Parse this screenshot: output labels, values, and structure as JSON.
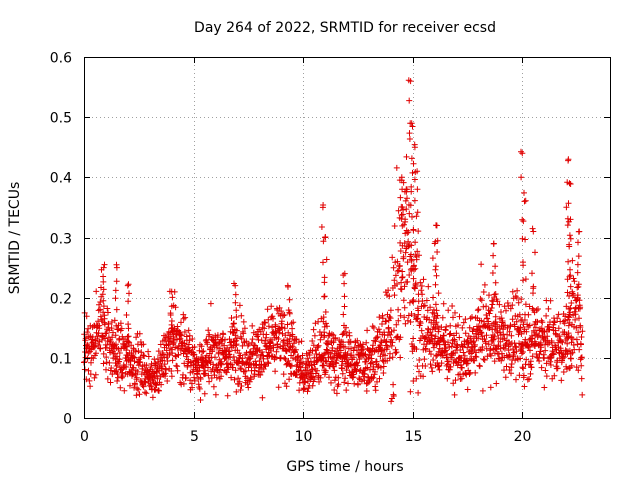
{
  "chart_data": {
    "type": "scatter",
    "title": "Day 264 of 2022, SRMTID for receiver ecsd",
    "xlabel": "GPS time / hours",
    "ylabel": "SRMTID / TECUs",
    "xlim": [
      0,
      24
    ],
    "ylim": [
      0,
      0.6
    ],
    "xticks": [
      "0",
      "5",
      "10",
      "15",
      "20"
    ],
    "yticks": [
      "0",
      "0.1",
      "0.2",
      "0.3",
      "0.4",
      "0.5",
      "0.6"
    ],
    "xtick_values": [
      0,
      5,
      10,
      15,
      20
    ],
    "ytick_values": [
      0,
      0.1,
      0.2,
      0.3,
      0.4,
      0.5,
      0.6
    ],
    "grid": true,
    "marker": "+",
    "color": "#e00000",
    "baseline": [
      [
        0.0,
        0.11
      ],
      [
        0.5,
        0.12
      ],
      [
        0.8,
        0.17
      ],
      [
        1.0,
        0.14
      ],
      [
        1.5,
        0.1
      ],
      [
        2.0,
        0.1
      ],
      [
        2.5,
        0.09
      ],
      [
        3.0,
        0.07
      ],
      [
        3.5,
        0.08
      ],
      [
        4.0,
        0.13
      ],
      [
        4.5,
        0.12
      ],
      [
        5.0,
        0.09
      ],
      [
        5.5,
        0.09
      ],
      [
        6.0,
        0.11
      ],
      [
        6.5,
        0.1
      ],
      [
        7.0,
        0.12
      ],
      [
        7.5,
        0.1
      ],
      [
        8.0,
        0.11
      ],
      [
        8.5,
        0.12
      ],
      [
        9.0,
        0.13
      ],
      [
        9.5,
        0.11
      ],
      [
        10.0,
        0.07
      ],
      [
        10.5,
        0.1
      ],
      [
        11.0,
        0.11
      ],
      [
        11.5,
        0.1
      ],
      [
        12.0,
        0.1
      ],
      [
        12.5,
        0.09
      ],
      [
        13.0,
        0.1
      ],
      [
        13.5,
        0.11
      ],
      [
        14.0,
        0.15
      ],
      [
        14.5,
        0.25
      ],
      [
        14.8,
        0.3
      ],
      [
        15.0,
        0.2
      ],
      [
        15.5,
        0.15
      ],
      [
        16.0,
        0.13
      ],
      [
        16.5,
        0.12
      ],
      [
        17.0,
        0.11
      ],
      [
        17.5,
        0.1
      ],
      [
        18.0,
        0.14
      ],
      [
        18.5,
        0.15
      ],
      [
        19.0,
        0.13
      ],
      [
        19.5,
        0.14
      ],
      [
        20.0,
        0.12
      ],
      [
        20.5,
        0.14
      ],
      [
        21.0,
        0.13
      ],
      [
        21.5,
        0.12
      ],
      [
        22.0,
        0.13
      ],
      [
        22.5,
        0.17
      ],
      [
        22.7,
        0.12
      ]
    ],
    "peaks": [
      [
        0.9,
        0.25
      ],
      [
        1.5,
        0.25
      ],
      [
        2.0,
        0.22
      ],
      [
        4.0,
        0.21
      ],
      [
        6.9,
        0.22
      ],
      [
        9.3,
        0.22
      ],
      [
        10.9,
        0.35
      ],
      [
        11.0,
        0.3
      ],
      [
        11.9,
        0.24
      ],
      [
        14.5,
        0.4
      ],
      [
        14.7,
        0.38
      ],
      [
        14.9,
        0.56
      ],
      [
        14.95,
        0.49
      ],
      [
        15.1,
        0.45
      ],
      [
        15.2,
        0.41
      ],
      [
        16.1,
        0.32
      ],
      [
        16.0,
        0.29
      ],
      [
        18.7,
        0.29
      ],
      [
        20.0,
        0.44
      ],
      [
        20.1,
        0.36
      ],
      [
        20.5,
        0.31
      ],
      [
        22.1,
        0.43
      ],
      [
        22.15,
        0.39
      ],
      [
        22.2,
        0.33
      ],
      [
        22.6,
        0.31
      ]
    ],
    "point_count": 2200
  }
}
